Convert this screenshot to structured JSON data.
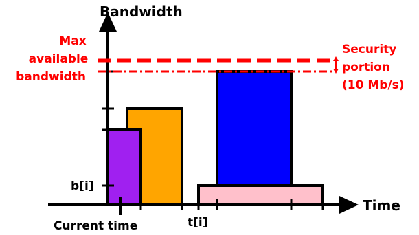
{
  "labels": {
    "y_axis": "Bandwidth",
    "x_axis": "Time",
    "max_bw_line1": "Max",
    "max_bw_line2": "available",
    "max_bw_line3": "bandwidth",
    "security_line1": "Security",
    "security_line2": "portion",
    "security_line3": "(10 Mb/s)",
    "b_i": "b[i]",
    "t_i": "t[i]",
    "current_time": "Current time"
  },
  "colors": {
    "axis": "#000000",
    "annotation": "#ff0000",
    "purple_block": "#a020f0",
    "orange_block": "#ffa500",
    "blue_block": "#0000ff",
    "pink_block": "#ffc0cb"
  }
}
